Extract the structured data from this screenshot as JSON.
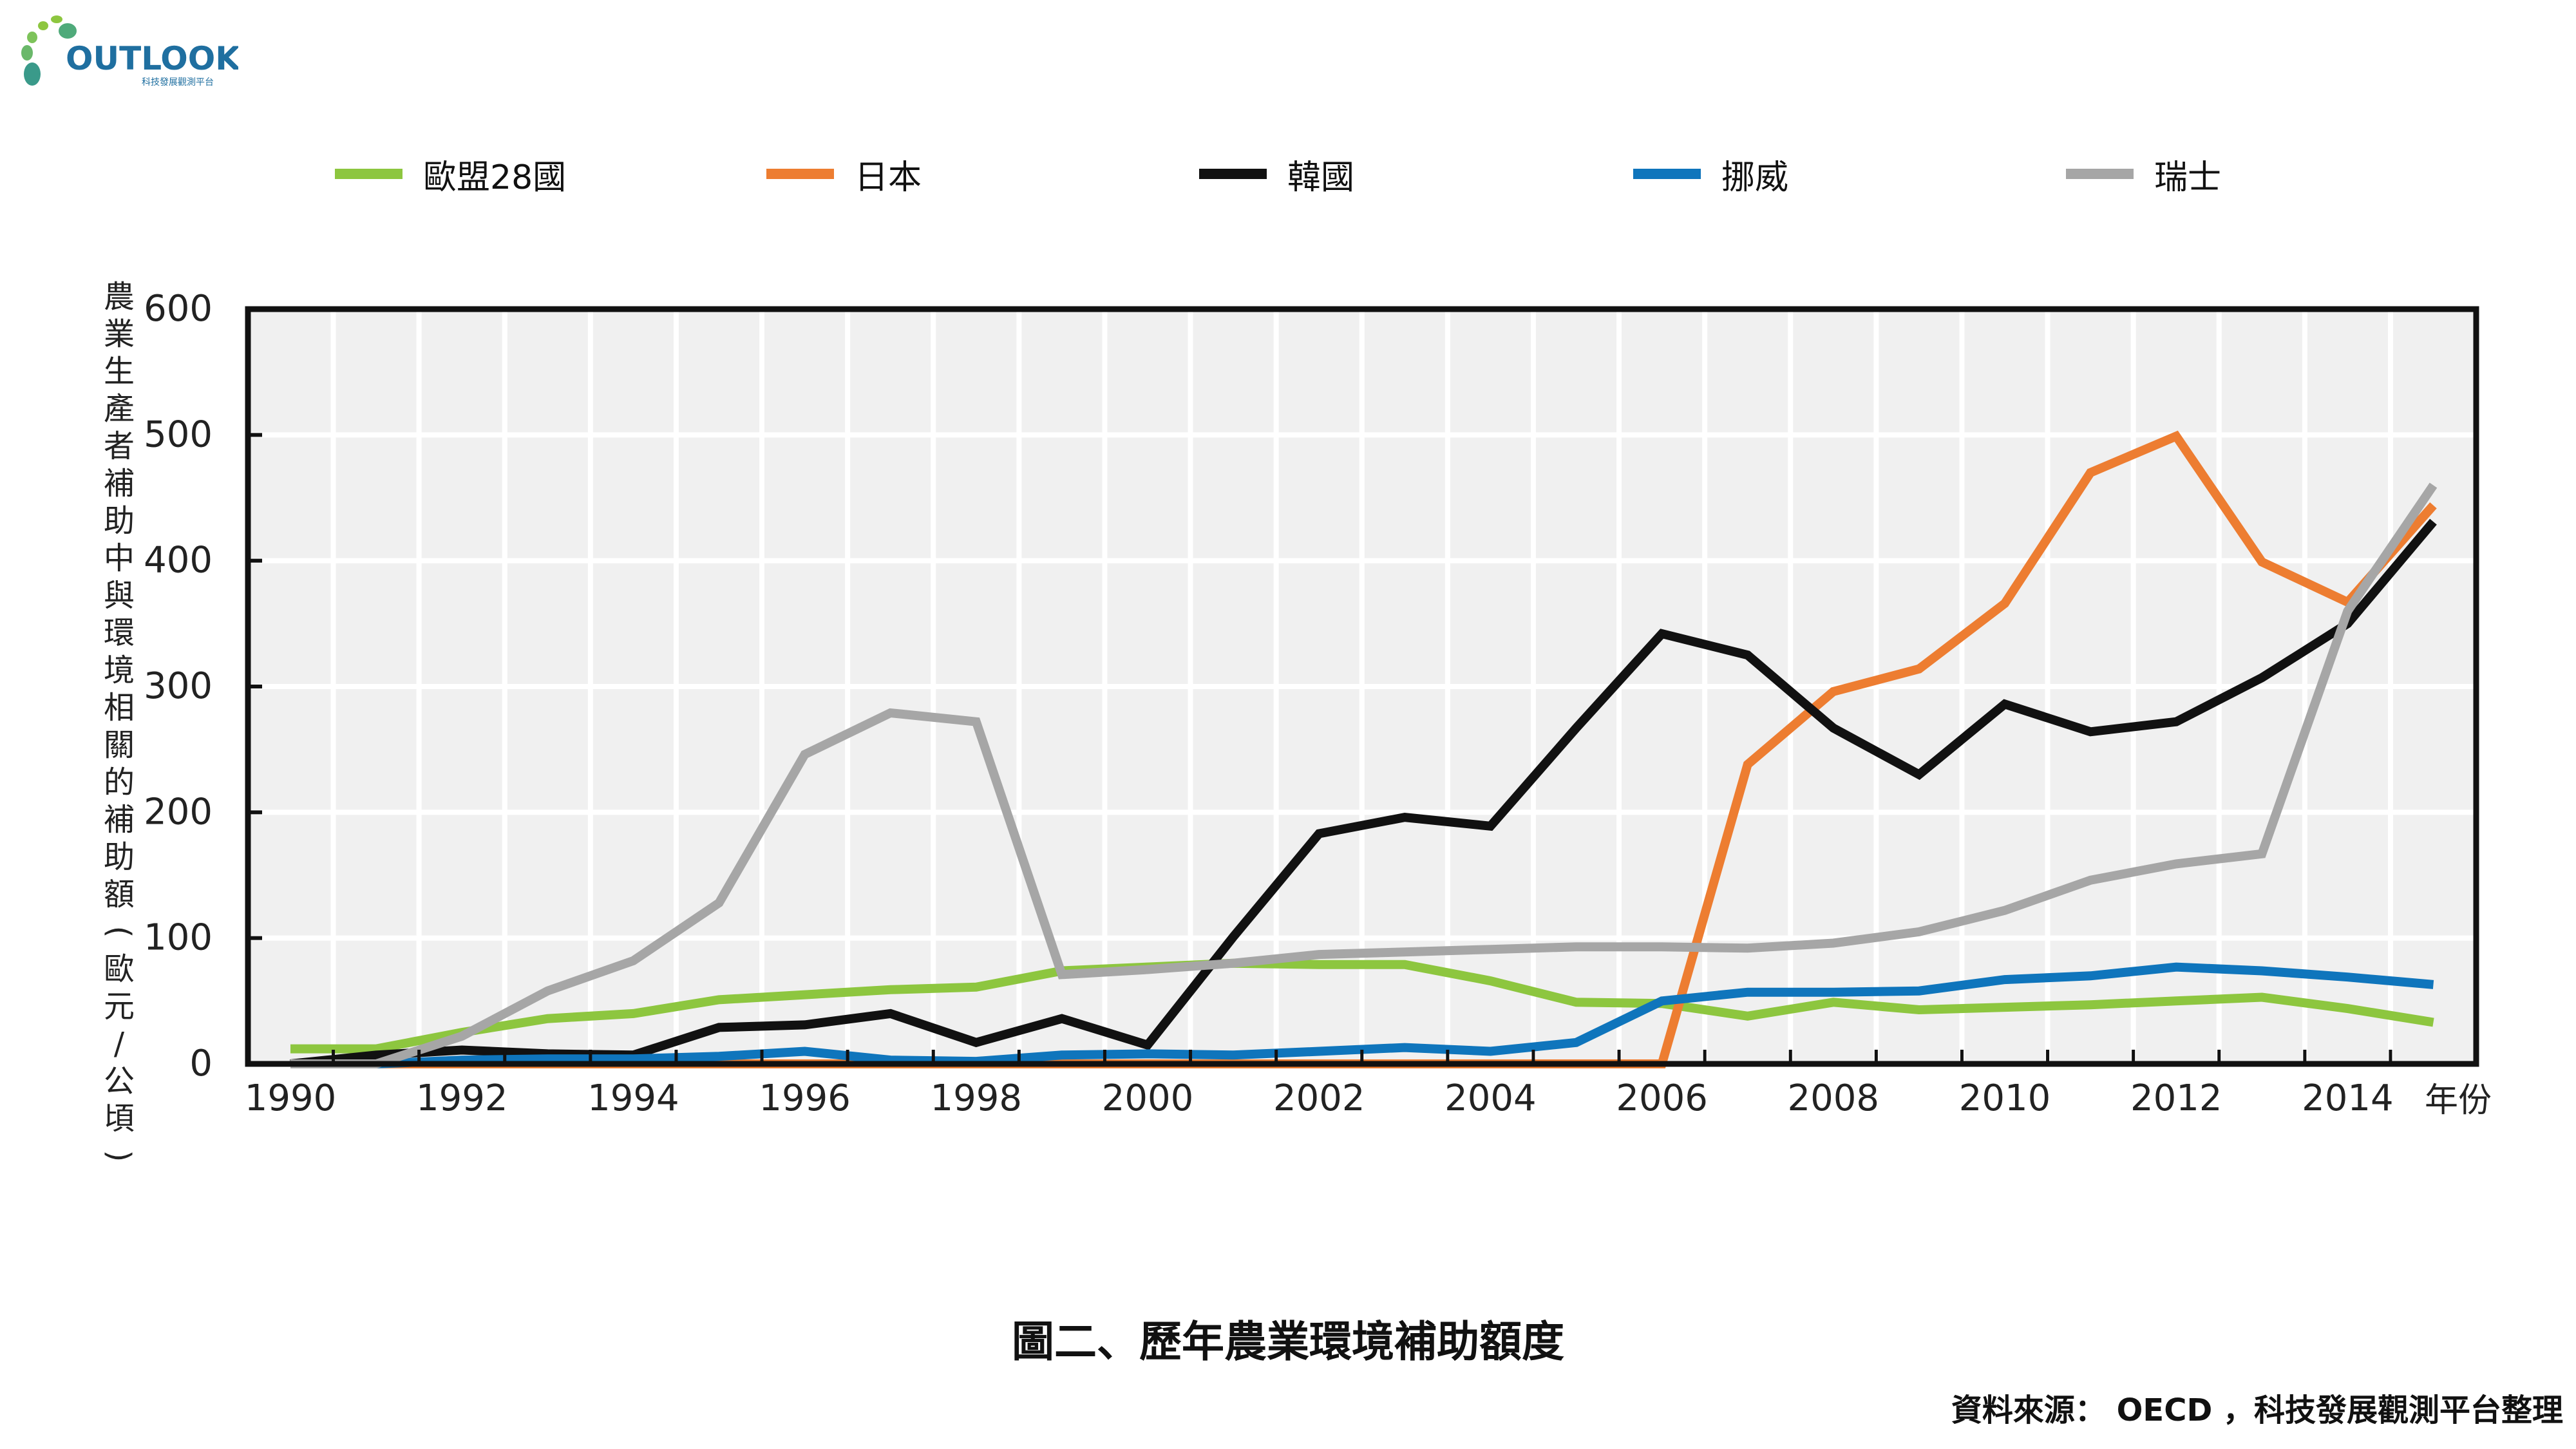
{
  "logo": {
    "text": "OUTLOOK",
    "subtext": "科技發展觀測平台"
  },
  "chart_data": {
    "type": "line",
    "title": "圖二、歷年農業環境補助額度",
    "source": "資料來源： OECD ，科技發展觀測平台整理",
    "xlabel": "年份",
    "ylabel": "農業生產者補助中與環境相關的補助額(歐元/公頃)",
    "ylim": [
      0,
      600
    ],
    "yticks": [
      "0",
      "100",
      "200",
      "300",
      "400",
      "500",
      "600"
    ],
    "xticks": [
      "1990",
      "1992",
      "1994",
      "1996",
      "1998",
      "2000",
      "2002",
      "2004",
      "2006",
      "2008",
      "2010",
      "2012",
      "2014"
    ],
    "grid": true,
    "legend_position": "top",
    "x": [
      1990,
      1991,
      1992,
      1993,
      1994,
      1995,
      1996,
      1997,
      1998,
      1999,
      2000,
      2001,
      2002,
      2003,
      2004,
      2005,
      2006,
      2007,
      2008,
      2009,
      2010,
      2011,
      2012,
      2013,
      2014,
      2015
    ],
    "series": [
      {
        "name": "歐盟28國",
        "color": "#8dc63f",
        "values": [
          12,
          12,
          25,
          36,
          40,
          51,
          55,
          59,
          61,
          74,
          77,
          80,
          79,
          79,
          66,
          49,
          48,
          38,
          49,
          43,
          45,
          47,
          50,
          53,
          44,
          33
        ]
      },
      {
        "name": "日本",
        "color": "#ed7d31",
        "values": [
          0,
          0,
          0,
          0,
          0,
          0,
          0,
          0,
          0,
          0,
          0,
          0,
          0,
          0,
          0,
          0,
          0,
          238,
          296,
          314,
          366,
          470,
          499,
          399,
          367,
          444
        ]
      },
      {
        "name": "韓國",
        "color": "#111111",
        "values": [
          0,
          7,
          11,
          8,
          7,
          29,
          31,
          40,
          17,
          36,
          15,
          101,
          183,
          196,
          189,
          267,
          342,
          325,
          267,
          230,
          286,
          264,
          272,
          307,
          350,
          431
        ]
      },
      {
        "name": "挪威",
        "color": "#0f75bc",
        "values": [
          0,
          0,
          3,
          4,
          4,
          6,
          10,
          3,
          2,
          7,
          8,
          7,
          10,
          13,
          10,
          17,
          50,
          57,
          57,
          58,
          67,
          70,
          77,
          74,
          69,
          63
        ]
      },
      {
        "name": "瑞士",
        "color": "#a6a6a6",
        "values": [
          0,
          0,
          22,
          58,
          82,
          128,
          246,
          279,
          272,
          71,
          75,
          80,
          87,
          89,
          91,
          93,
          93,
          92,
          96,
          105,
          122,
          146,
          159,
          167,
          360,
          460
        ]
      }
    ]
  }
}
